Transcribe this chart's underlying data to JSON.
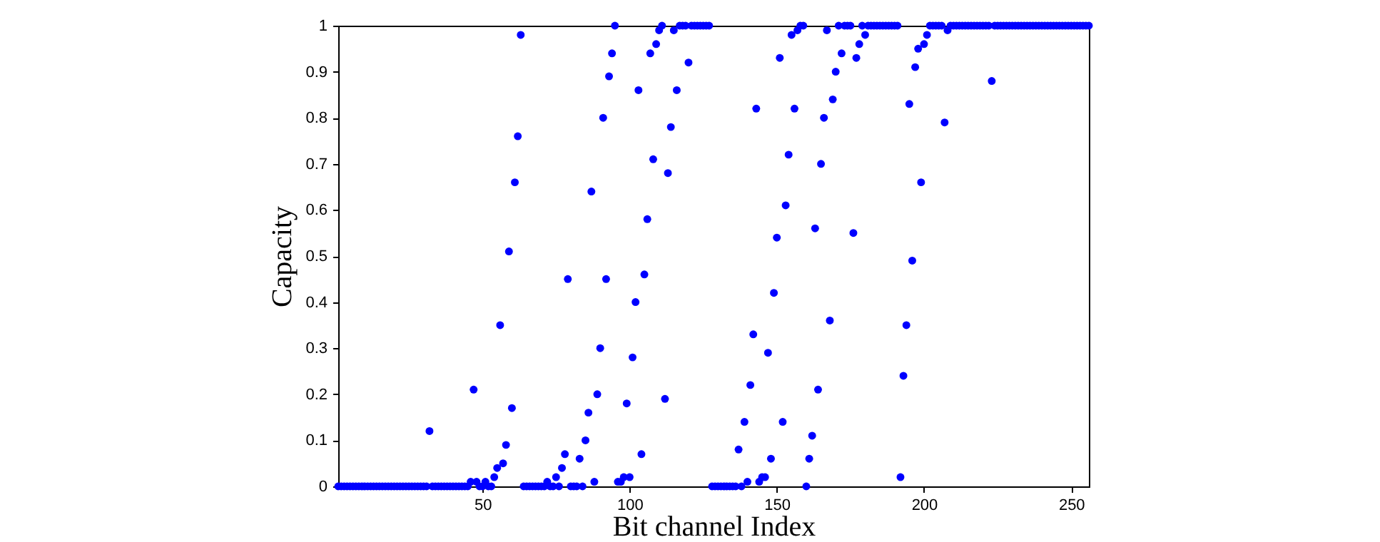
{
  "chart_data": {
    "type": "scatter",
    "xlabel": "Bit channel Index",
    "ylabel": "Capacity",
    "marker": "circle",
    "grid": false,
    "xlim": [
      1,
      256
    ],
    "xticks": [
      50,
      100,
      150,
      200,
      250
    ],
    "ylim": [
      0,
      1
    ],
    "yticks": [
      0,
      0.1,
      0.2,
      0.3,
      0.4,
      0.5,
      0.6,
      0.7,
      0.8,
      0.9,
      1
    ],
    "series": [
      {
        "color": "#0000ff",
        "x": [
          1,
          2,
          3,
          4,
          5,
          6,
          7,
          8,
          9,
          10,
          11,
          12,
          13,
          14,
          15,
          16,
          17,
          18,
          19,
          20,
          21,
          22,
          23,
          24,
          25,
          26,
          27,
          28,
          29,
          30,
          31,
          32,
          33,
          34,
          35,
          36,
          37,
          38,
          39,
          40,
          41,
          42,
          43,
          44,
          45,
          46,
          47,
          48,
          49,
          50,
          51,
          52,
          53,
          54,
          55,
          56,
          57,
          58,
          59,
          60,
          61,
          62,
          63,
          64,
          65,
          66,
          67,
          68,
          69,
          70,
          71,
          72,
          73,
          74,
          75,
          76,
          77,
          78,
          79,
          80,
          81,
          82,
          83,
          84,
          85,
          86,
          87,
          88,
          89,
          90,
          91,
          92,
          93,
          94,
          95,
          96,
          97,
          98,
          99,
          100,
          101,
          102,
          103,
          104,
          105,
          106,
          107,
          108,
          109,
          110,
          111,
          112,
          113,
          114,
          115,
          116,
          117,
          118,
          119,
          120,
          121,
          122,
          123,
          124,
          125,
          126,
          127,
          128,
          129,
          130,
          131,
          132,
          133,
          134,
          135,
          136,
          137,
          138,
          139,
          140,
          141,
          142,
          143,
          144,
          145,
          146,
          147,
          148,
          149,
          150,
          151,
          152,
          153,
          154,
          155,
          156,
          157,
          158,
          159,
          160,
          161,
          162,
          163,
          164,
          165,
          166,
          167,
          168,
          169,
          170,
          171,
          172,
          173,
          174,
          175,
          176,
          177,
          178,
          179,
          180,
          181,
          182,
          183,
          184,
          185,
          186,
          187,
          188,
          189,
          190,
          191,
          192,
          193,
          194,
          195,
          196,
          197,
          198,
          199,
          200,
          201,
          202,
          203,
          204,
          205,
          206,
          207,
          208,
          209,
          210,
          211,
          212,
          213,
          214,
          215,
          216,
          217,
          218,
          219,
          220,
          221,
          222,
          223,
          224,
          225,
          226,
          227,
          228,
          229,
          230,
          231,
          232,
          233,
          234,
          235,
          236,
          237,
          238,
          239,
          240,
          241,
          242,
          243,
          244,
          245,
          246,
          247,
          248,
          249,
          250,
          251,
          252,
          253,
          254,
          255,
          256
        ],
        "values": [
          0,
          0,
          0,
          0,
          0,
          0,
          0,
          0,
          0,
          0,
          0,
          0,
          0,
          0,
          0,
          0,
          0,
          0,
          0,
          0,
          0,
          0,
          0,
          0,
          0,
          0,
          0,
          0,
          0,
          0,
          0,
          0.12,
          0,
          0,
          0,
          0,
          0,
          0,
          0,
          0,
          0,
          0,
          0,
          0,
          0,
          0.01,
          0.21,
          0.01,
          0,
          0,
          0.01,
          0,
          0,
          0.02,
          0.04,
          0.35,
          0.05,
          0.09,
          0.51,
          0.17,
          0.66,
          0.76,
          0.98,
          0,
          0,
          0,
          0,
          0,
          0,
          0,
          0,
          0.01,
          0,
          0,
          0.02,
          0,
          0.04,
          0.07,
          0.45,
          0,
          0,
          0,
          0.06,
          0,
          0.1,
          0.16,
          0.64,
          0.01,
          0.2,
          0.3,
          0.8,
          0.45,
          0.89,
          0.94,
          1,
          0.01,
          0.01,
          0.02,
          0.18,
          0.02,
          0.28,
          0.4,
          0.86,
          0.07,
          0.46,
          0.58,
          0.94,
          0.71,
          0.96,
          0.99,
          1,
          0.19,
          0.68,
          0.78,
          0.99,
          0.86,
          1,
          1,
          1,
          0.92,
          1,
          1,
          1,
          1,
          1,
          1,
          1,
          0,
          0,
          0,
          0,
          0,
          0,
          0,
          0,
          0,
          0.08,
          0,
          0.14,
          0.01,
          0.22,
          0.33,
          0.82,
          0.01,
          0.02,
          0.02,
          0.29,
          0.06,
          0.42,
          0.54,
          0.93,
          0.14,
          0.61,
          0.72,
          0.98,
          0.82,
          0.99,
          1,
          1,
          0,
          0.06,
          0.11,
          0.56,
          0.21,
          0.7,
          0.8,
          0.99,
          0.36,
          0.84,
          0.9,
          1,
          0.94,
          1,
          1,
          1,
          0.55,
          0.93,
          0.96,
          1,
          0.98,
          1,
          1,
          1,
          1,
          1,
          1,
          1,
          1,
          1,
          1,
          1,
          0.02,
          0.24,
          0.35,
          0.83,
          0.49,
          0.91,
          0.95,
          0.66,
          0.96,
          0.98,
          1,
          1,
          1,
          1,
          1,
          0.79,
          0.99,
          1,
          1,
          1,
          1,
          1,
          1,
          1,
          1,
          1,
          1,
          1,
          1,
          1,
          1,
          0.88,
          1,
          1,
          1,
          1,
          1,
          1,
          1,
          1,
          1,
          1,
          1,
          1,
          1,
          1,
          1,
          1,
          1,
          1,
          1,
          1,
          1,
          1,
          1,
          1,
          1,
          1,
          1,
          1,
          1,
          1,
          1,
          1,
          1
        ]
      }
    ]
  }
}
